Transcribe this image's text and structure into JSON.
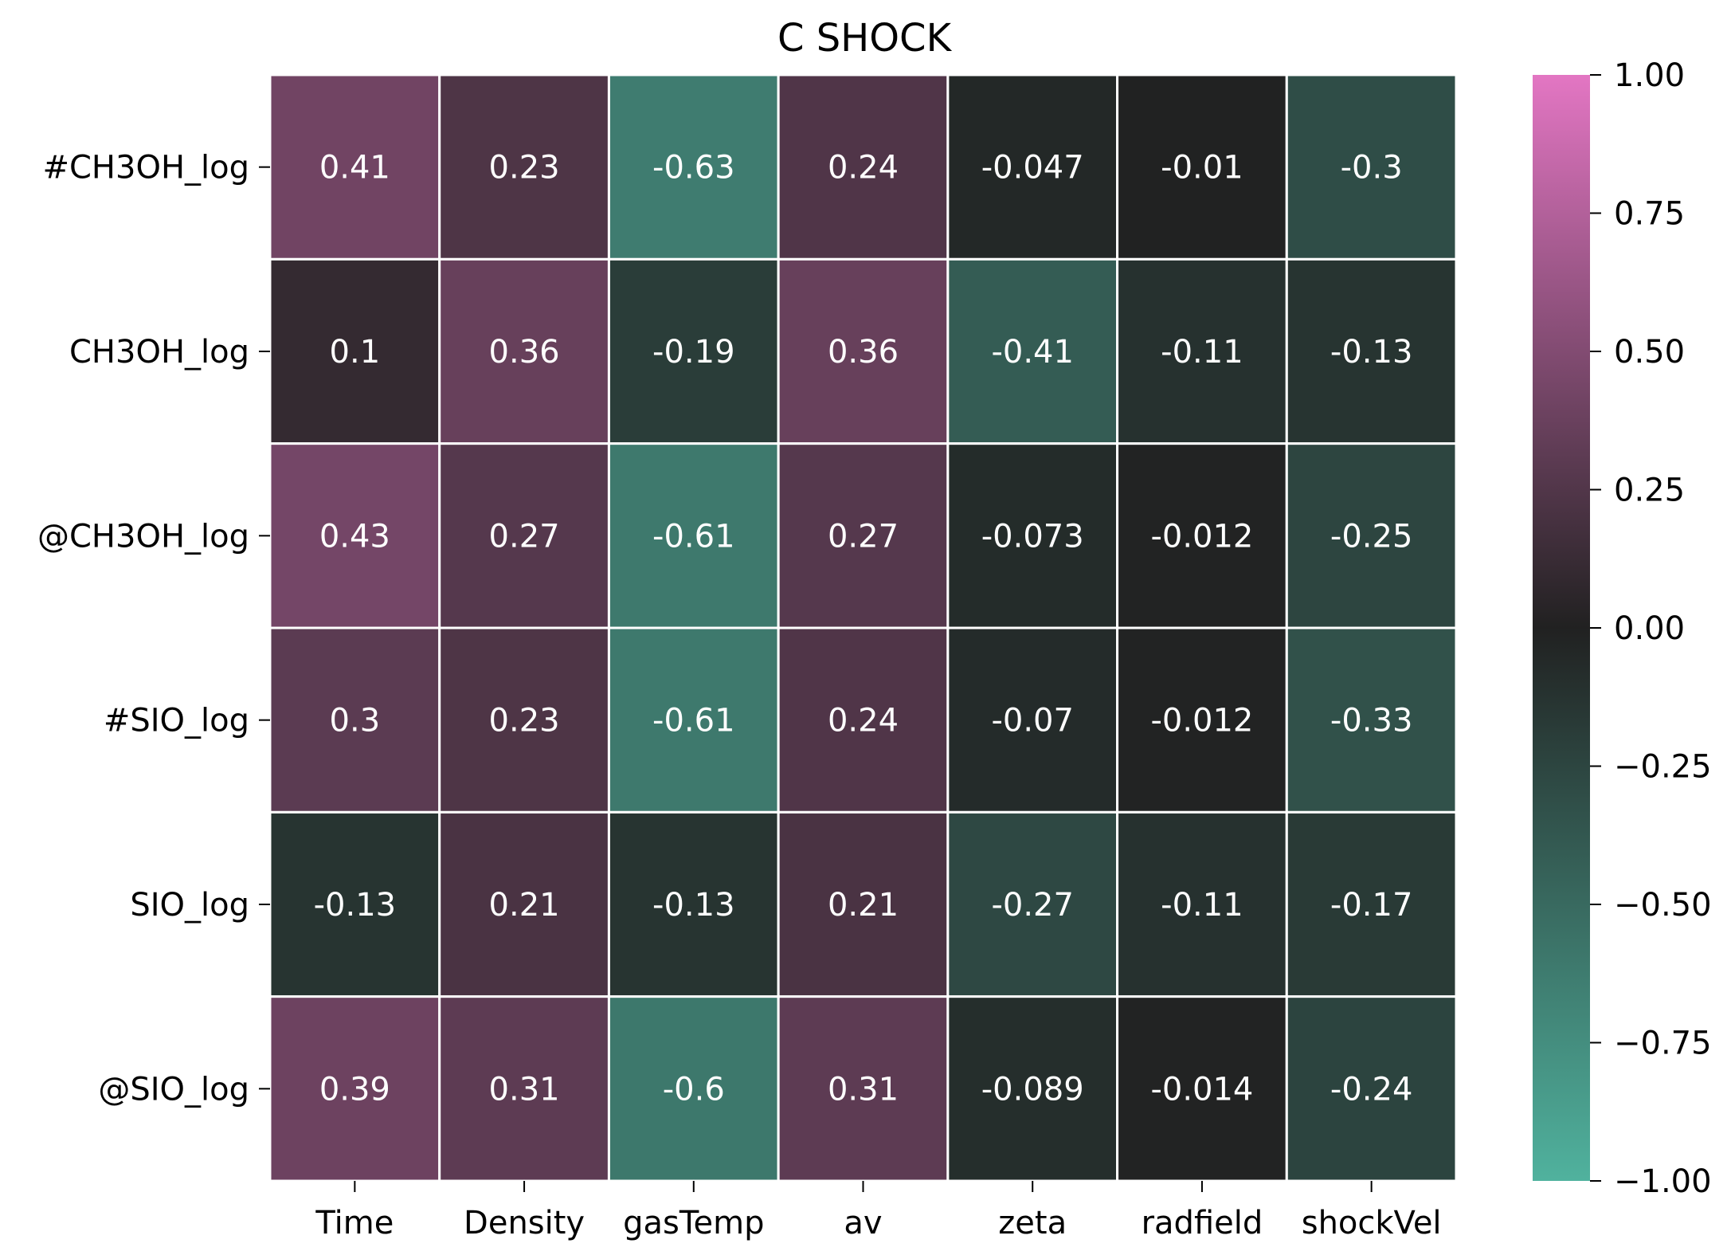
{
  "chart_data": {
    "type": "heatmap",
    "title": "C SHOCK",
    "rows": [
      "#CH3OH_log",
      "CH3OH_log",
      "@CH3OH_log",
      "#SIO_log",
      "SIO_log",
      "@SIO_log"
    ],
    "columns": [
      "Time",
      "Density",
      "gasTemp",
      "av",
      "zeta",
      "radfield",
      "shockVel"
    ],
    "values": [
      [
        0.41,
        0.23,
        -0.63,
        0.24,
        -0.047,
        -0.01,
        -0.3
      ],
      [
        0.1,
        0.36,
        -0.19,
        0.36,
        -0.41,
        -0.11,
        -0.13
      ],
      [
        0.43,
        0.27,
        -0.61,
        0.27,
        -0.073,
        -0.012,
        -0.25
      ],
      [
        0.3,
        0.23,
        -0.61,
        0.24,
        -0.07,
        -0.012,
        -0.33
      ],
      [
        -0.13,
        0.21,
        -0.13,
        0.21,
        -0.27,
        -0.11,
        -0.17
      ],
      [
        0.39,
        0.31,
        -0.6,
        0.31,
        -0.089,
        -0.014,
        -0.24
      ]
    ],
    "labels": [
      [
        "0.41",
        "0.23",
        "-0.63",
        "0.24",
        "-0.047",
        "-0.01",
        "-0.3"
      ],
      [
        "0.1",
        "0.36",
        "-0.19",
        "0.36",
        "-0.41",
        "-0.11",
        "-0.13"
      ],
      [
        "0.43",
        "0.27",
        "-0.61",
        "0.27",
        "-0.073",
        "-0.012",
        "-0.25"
      ],
      [
        "0.3",
        "0.23",
        "-0.61",
        "0.24",
        "-0.07",
        "-0.012",
        "-0.33"
      ],
      [
        "-0.13",
        "0.21",
        "-0.13",
        "0.21",
        "-0.27",
        "-0.11",
        "-0.17"
      ],
      [
        "0.39",
        "0.31",
        "-0.6",
        "0.31",
        "-0.089",
        "-0.014",
        "-0.24"
      ]
    ],
    "colorbar": {
      "range": [
        -1,
        1
      ],
      "ticks": [
        1,
        0.75,
        0.5,
        0.25,
        0,
        -0.25,
        -0.5,
        -0.75,
        -1
      ],
      "tick_labels": [
        "1.00",
        "0.75",
        "0.50",
        "0.25",
        "0.00",
        "−0.25",
        "−0.50",
        "−0.75",
        "−1.00"
      ],
      "colors": {
        "low": "#50b29e",
        "mid": "#212121",
        "high": "#e376c3"
      }
    }
  }
}
